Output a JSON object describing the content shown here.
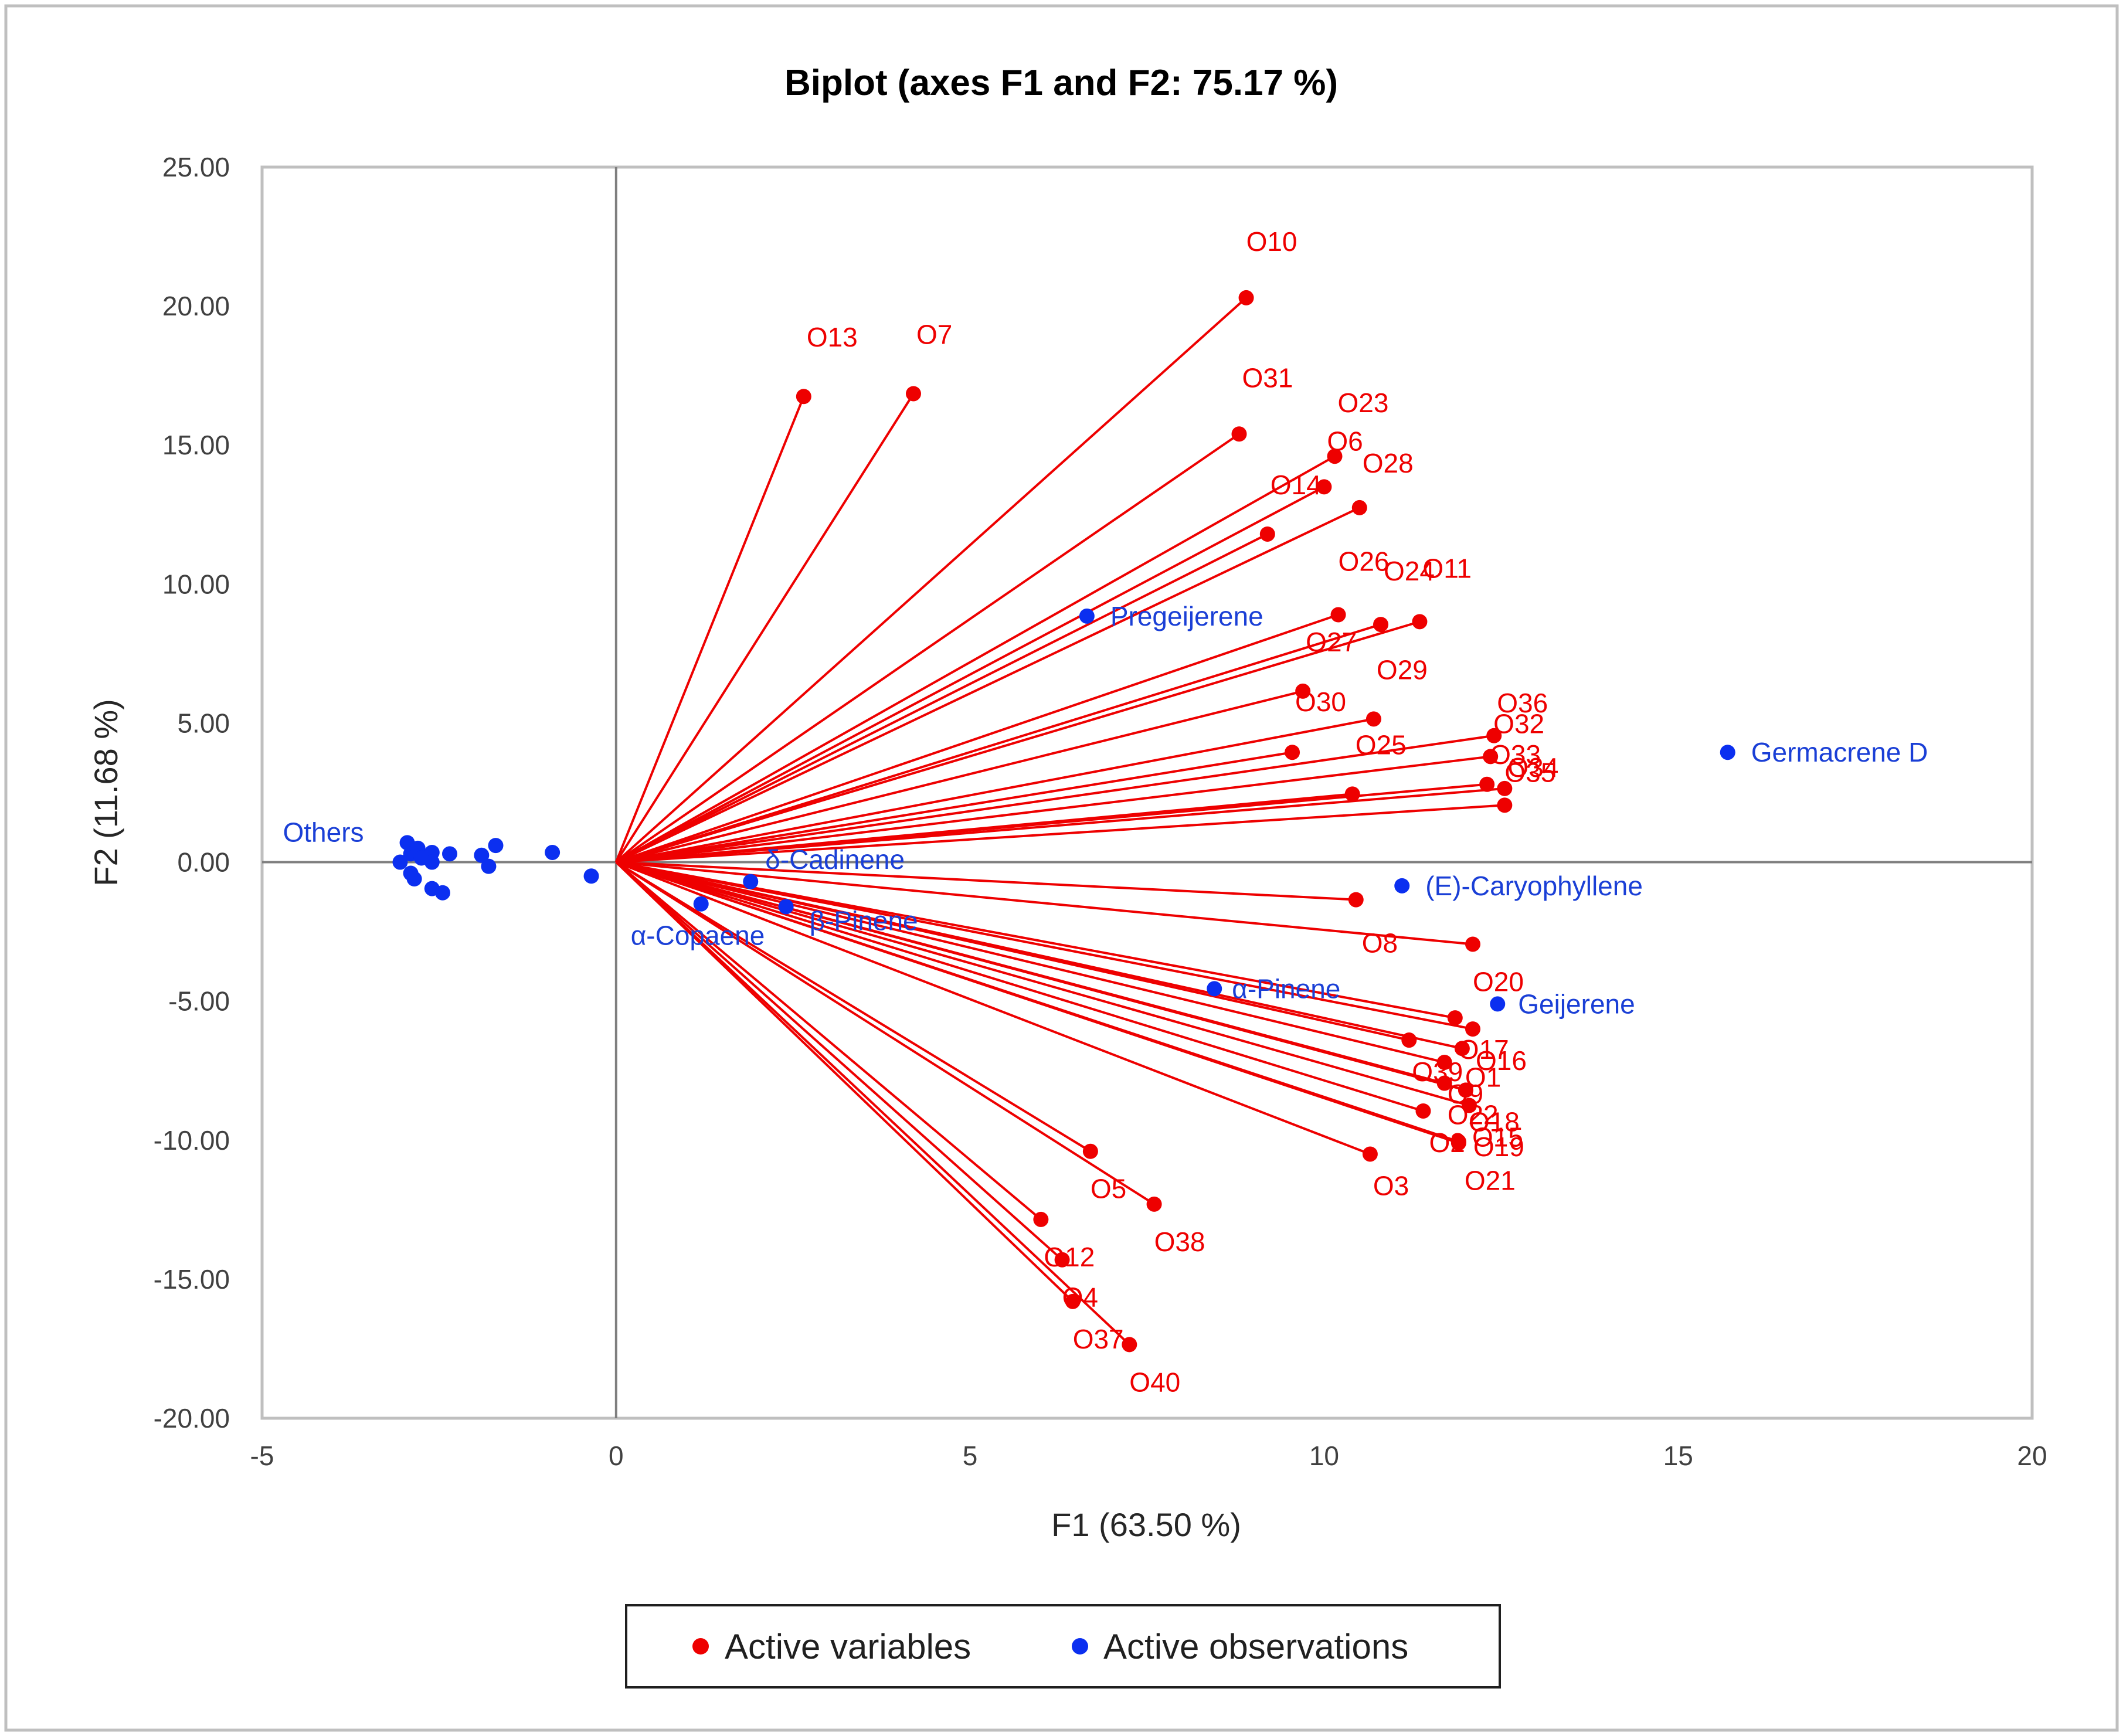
{
  "colors": {
    "variables": "#ee0000",
    "observations": "#0b2ff0",
    "axis": "#7f7f7f",
    "frame": "#bfbfbf",
    "text": "#262626"
  },
  "chart_data": {
    "type": "scatter",
    "title": "Biplot (axes F1 and F2: 75.17 %)",
    "xlabel": "F1 (63.50 %)",
    "ylabel": "F2 (11.68 %)",
    "xlim": [
      -5,
      20
    ],
    "ylim": [
      -20,
      25
    ],
    "x_ticks": [
      -5,
      0,
      5,
      10,
      15,
      20
    ],
    "x_tick_labels": [
      "-5",
      "0",
      "5",
      "10",
      "15",
      "20"
    ],
    "y_ticks": [
      25,
      20,
      15,
      10,
      5,
      0,
      -5,
      -10,
      -15,
      -20
    ],
    "y_tick_labels": [
      "25.00",
      "20.00",
      "15.00",
      "10.00",
      "5.00",
      "0.00",
      "-5.00",
      "-10.00",
      "-15.00",
      "-20.00"
    ],
    "legend": [
      {
        "label": "Active variables",
        "series": "variables"
      },
      {
        "label": "Active observations",
        "series": "observations"
      }
    ],
    "legend_position": "bottom-center",
    "series": [
      {
        "name": "Active variables",
        "style": "vectors-from-origin",
        "points": [
          {
            "label": "O10",
            "x": 8.9,
            "y": 20.3
          },
          {
            "label": "O13",
            "x": 2.65,
            "y": 16.75
          },
          {
            "label": "O7",
            "x": 4.2,
            "y": 16.85
          },
          {
            "label": "O31",
            "x": 8.8,
            "y": 15.4
          },
          {
            "label": "O23",
            "x": 10.15,
            "y": 14.6
          },
          {
            "label": "O6",
            "x": 10.0,
            "y": 13.5
          },
          {
            "label": "O28",
            "x": 10.5,
            "y": 12.75
          },
          {
            "label": "O14",
            "x": 9.2,
            "y": 11.8
          },
          {
            "label": "O26",
            "x": 10.2,
            "y": 8.9
          },
          {
            "label": "O24",
            "x": 10.8,
            "y": 8.55
          },
          {
            "label": "O11",
            "x": 11.35,
            "y": 8.65
          },
          {
            "label": "O27",
            "x": 9.7,
            "y": 6.15
          },
          {
            "label": "O29",
            "x": 10.7,
            "y": 5.15
          },
          {
            "label": "O30",
            "x": 9.55,
            "y": 3.95
          },
          {
            "label": "O25",
            "x": 10.4,
            "y": 2.45
          },
          {
            "label": "O36",
            "x": 12.4,
            "y": 4.55
          },
          {
            "label": "O32",
            "x": 12.35,
            "y": 3.8
          },
          {
            "label": "O33",
            "x": 12.3,
            "y": 2.8
          },
          {
            "label": "O34",
            "x": 12.55,
            "y": 2.65
          },
          {
            "label": "O35",
            "x": 12.55,
            "y": 2.05
          },
          {
            "label": "O8",
            "x": 10.45,
            "y": -1.35
          },
          {
            "label": "O20",
            "x": 12.1,
            "y": -2.95
          },
          {
            "label": "O17",
            "x": 11.85,
            "y": -5.6
          },
          {
            "label": "O16",
            "x": 12.1,
            "y": -6.0
          },
          {
            "label": "O39",
            "x": 11.2,
            "y": -6.4
          },
          {
            "label": "O1",
            "x": 11.95,
            "y": -6.7
          },
          {
            "label": "O9",
            "x": 11.7,
            "y": -7.2
          },
          {
            "label": "O22",
            "x": 11.7,
            "y": -7.95
          },
          {
            "label": "O18",
            "x": 12.0,
            "y": -8.2
          },
          {
            "label": "O15",
            "x": 12.05,
            "y": -8.75
          },
          {
            "label": "O2",
            "x": 11.4,
            "y": -8.95
          },
          {
            "label": "O19",
            "x": 11.9,
            "y": -10.05
          },
          {
            "label": "O21",
            "x": 11.9,
            "y": -10.1
          },
          {
            "label": "O3",
            "x": 10.65,
            "y": -10.5
          },
          {
            "label": "O5",
            "x": 6.7,
            "y": -10.4
          },
          {
            "label": "O38",
            "x": 7.6,
            "y": -12.3
          },
          {
            "label": "O12",
            "x": 6.0,
            "y": -12.85
          },
          {
            "label": "O4",
            "x": 6.3,
            "y": -14.3
          },
          {
            "label": "O37",
            "x": 6.45,
            "y": -15.8
          },
          {
            "label": "O40",
            "x": 7.25,
            "y": -17.35
          }
        ]
      },
      {
        "name": "Active observations",
        "style": "points",
        "points": [
          {
            "label": "Germacrene D",
            "x": 15.7,
            "y": 3.95
          },
          {
            "label": "Pregeijerene",
            "x": 6.65,
            "y": 8.85
          },
          {
            "label": "(E)-Caryophyllene",
            "x": 11.1,
            "y": -0.85
          },
          {
            "label": "Geijerene",
            "x": 12.45,
            "y": -5.1
          },
          {
            "label": "α-Pinene",
            "x": 8.45,
            "y": -4.55
          },
          {
            "label": "δ-Cadinene",
            "x": 1.9,
            "y": -0.7
          },
          {
            "label": "β-Pinene",
            "x": 2.4,
            "y": -1.6
          },
          {
            "label": "α-Copaene",
            "x": 1.2,
            "y": -1.5
          },
          {
            "label": "Others",
            "x": -3.05,
            "y": 0.0
          },
          {
            "label": "",
            "x": -2.95,
            "y": 0.7
          },
          {
            "label": "",
            "x": -2.9,
            "y": 0.3
          },
          {
            "label": "",
            "x": -2.8,
            "y": 0.5
          },
          {
            "label": "",
            "x": -2.75,
            "y": 0.15
          },
          {
            "label": "",
            "x": -2.6,
            "y": 0.35
          },
          {
            "label": "",
            "x": -2.6,
            "y": 0.0
          },
          {
            "label": "",
            "x": -2.9,
            "y": -0.4
          },
          {
            "label": "",
            "x": -2.85,
            "y": -0.6
          },
          {
            "label": "",
            "x": -2.6,
            "y": -0.95
          },
          {
            "label": "",
            "x": -2.45,
            "y": -1.1
          },
          {
            "label": "",
            "x": -2.35,
            "y": 0.3
          },
          {
            "label": "",
            "x": -1.9,
            "y": 0.25
          },
          {
            "label": "",
            "x": -1.7,
            "y": 0.6
          },
          {
            "label": "",
            "x": -1.8,
            "y": -0.15
          },
          {
            "label": "",
            "x": -0.9,
            "y": 0.35
          },
          {
            "label": "",
            "x": -0.35,
            "y": -0.5
          }
        ]
      }
    ]
  }
}
